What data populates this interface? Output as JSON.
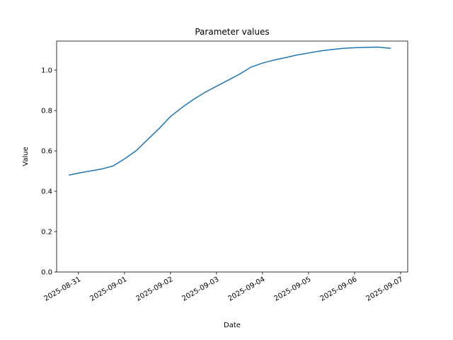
{
  "chart_data": {
    "type": "line",
    "title": "Parameter values",
    "x_label": "Date",
    "y_label": "Value",
    "x": [
      "2025-08-30T19:00",
      "2025-08-31T00:00",
      "2025-08-31T06:00",
      "2025-08-31T12:00",
      "2025-08-31T18:00",
      "2025-09-01T00:00",
      "2025-09-01T06:00",
      "2025-09-01T12:00",
      "2025-09-01T18:00",
      "2025-09-02T00:00",
      "2025-09-02T06:00",
      "2025-09-02T12:00",
      "2025-09-02T18:00",
      "2025-09-03T00:00",
      "2025-09-03T06:00",
      "2025-09-03T12:00",
      "2025-09-03T18:00",
      "2025-09-04T00:00",
      "2025-09-04T06:00",
      "2025-09-04T12:00",
      "2025-09-04T18:00",
      "2025-09-05T00:00",
      "2025-09-05T06:00",
      "2025-09-05T12:00",
      "2025-09-05T18:00",
      "2025-09-06T00:00",
      "2025-09-06T06:00",
      "2025-09-06T12:00",
      "2025-09-06T19:00"
    ],
    "series": [
      {
        "name": "Value",
        "color": "#1f77b4",
        "values": [
          0.48,
          0.49,
          0.5,
          0.51,
          0.525,
          0.56,
          0.6,
          0.655,
          0.71,
          0.77,
          0.815,
          0.855,
          0.89,
          0.92,
          0.95,
          0.98,
          1.015,
          1.035,
          1.05,
          1.062,
          1.075,
          1.085,
          1.095,
          1.102,
          1.108,
          1.111,
          1.113,
          1.114,
          1.108
        ]
      }
    ],
    "xlim": [
      "2025-08-30T12:38",
      "2025-09-07T03:43"
    ],
    "xticks": [
      "2025-08-31",
      "2025-09-01",
      "2025-09-02",
      "2025-09-03",
      "2025-09-04",
      "2025-09-05",
      "2025-09-06",
      "2025-09-07"
    ],
    "ylim": [
      0,
      1.144
    ],
    "yticks": [
      {
        "value": 0,
        "label": "0.0"
      },
      0.2,
      0.4,
      0.6,
      0.8,
      {
        "value": 1,
        "label": "1.0"
      }
    ]
  }
}
